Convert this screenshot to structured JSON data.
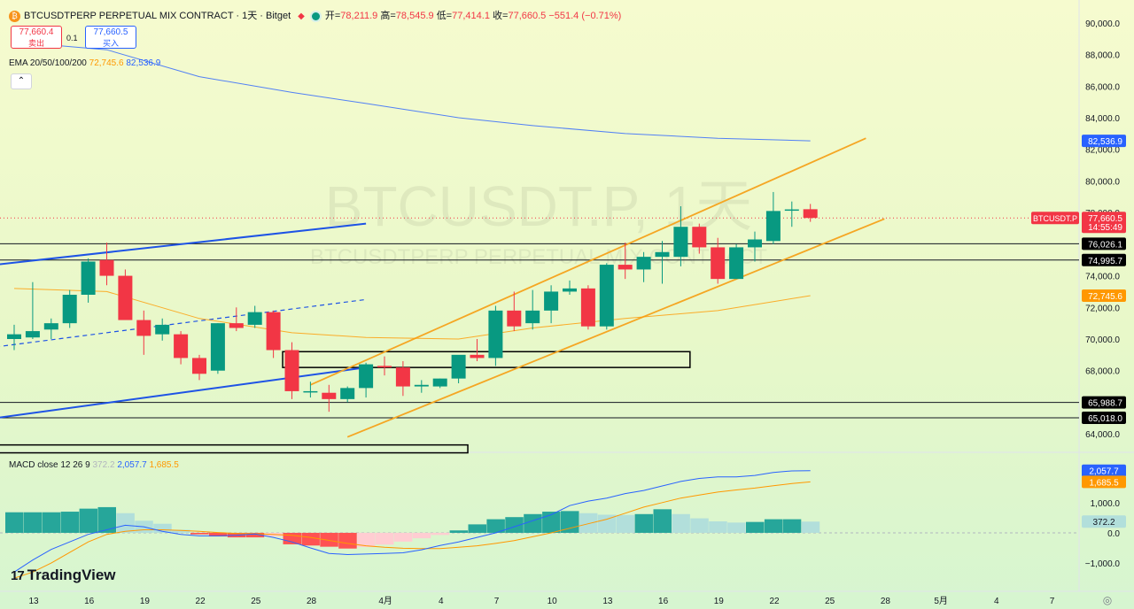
{
  "header": {
    "symbol_icon": "bitcoin-icon",
    "title": "BTCUSDTPERP PERPETUAL MIX CONTRACT · 1天 · Bitget",
    "open_label": "开=",
    "open": "78,211.9",
    "high_label": "高=",
    "high": "78,545.9",
    "low_label": "低=",
    "low": "77,414.1",
    "close_label": "收=",
    "close": "77,660.5",
    "change": "−551.4 (−0.71%)"
  },
  "trade": {
    "sell_price": "77,660.4",
    "sell_label": "卖出",
    "qty": "0.1",
    "buy_price": "77,660.5",
    "buy_label": "买入"
  },
  "ema_legend": {
    "label": "EMA 20/50/100/200",
    "v1": "72,745.6",
    "v2": "82,536.9"
  },
  "collapse_icon": "chevron-up-icon",
  "watermark": {
    "big": "BTCUSDT.P, 1天",
    "small": "BTCUSDTPERP PERPETUAL MIX CONTRACT"
  },
  "macd_legend": {
    "label": "MACD close 12 26 9",
    "hist": "372.2",
    "macd": "2,057.7",
    "signal": "1,685.5"
  },
  "price_axis": [
    "90,000.0",
    "88,000.0",
    "86,000.0",
    "84,000.0",
    "82,000.0",
    "80,000.0",
    "78,000.0",
    "76,000.0",
    "74,000.0",
    "72,000.0",
    "70,000.0",
    "68,000.0",
    "66,000.0",
    "64,000.0"
  ],
  "price_tags": [
    {
      "text": "82,536.9",
      "price": 82536.9,
      "bg": "#2962ff",
      "fg": "#ffffff"
    },
    {
      "text": "77,660.5",
      "price": 77660.5,
      "bg": "#f23645",
      "fg": "#ffffff",
      "sub": "14:55:49"
    },
    {
      "text": "76,026.1",
      "price": 76026.1,
      "bg": "#000000",
      "fg": "#ffffff"
    },
    {
      "text": "74,995.7",
      "price": 74995.7,
      "bg": "#000000",
      "fg": "#ffffff"
    },
    {
      "text": "72,745.6",
      "price": 72745.6,
      "bg": "#ff9800",
      "fg": "#ffffff"
    },
    {
      "text": "65,988.7",
      "price": 65988.7,
      "bg": "#000000",
      "fg": "#ffffff"
    },
    {
      "text": "65,018.0",
      "price": 65018.0,
      "bg": "#000000",
      "fg": "#ffffff"
    }
  ],
  "symbol_tag": "BTCUSDT.P",
  "macd_axis": [
    "1,000.0",
    "0.0",
    "−1,000.0"
  ],
  "macd_tags": [
    {
      "text": "2,057.7",
      "value": 2057.7,
      "bg": "#2962ff",
      "fg": "#ffffff"
    },
    {
      "text": "1,685.5",
      "value": 1685.5,
      "bg": "#ff9800",
      "fg": "#ffffff"
    },
    {
      "text": "372.2",
      "value": 372.2,
      "bg": "#b2dfdb",
      "fg": "#131722"
    }
  ],
  "time_axis": [
    {
      "label": "13",
      "bar": 0
    },
    {
      "label": "16",
      "bar": 3
    },
    {
      "label": "19",
      "bar": 6
    },
    {
      "label": "22",
      "bar": 9
    },
    {
      "label": "25",
      "bar": 12
    },
    {
      "label": "28",
      "bar": 15
    },
    {
      "label": "4月",
      "bar": 19
    },
    {
      "label": "4",
      "bar": 22
    },
    {
      "label": "7",
      "bar": 25
    },
    {
      "label": "10",
      "bar": 28
    },
    {
      "label": "13",
      "bar": 31
    },
    {
      "label": "16",
      "bar": 34
    },
    {
      "label": "19",
      "bar": 37
    },
    {
      "label": "22",
      "bar": 40
    },
    {
      "label": "25",
      "bar": 43
    },
    {
      "label": "28",
      "bar": 46
    },
    {
      "label": "5月",
      "bar": 49
    },
    {
      "label": "4",
      "bar": 52
    },
    {
      "label": "7",
      "bar": 55
    }
  ],
  "settings_icon": "gear-icon",
  "branding": {
    "text": "TradingView",
    "icon": "tradingview-logo-icon"
  },
  "colors": {
    "up": "#089981",
    "down": "#f23645",
    "ema_short": "#ff9800",
    "ema_long": "#2962ff",
    "channel": "#f5a623",
    "trendline": "#1e53e5",
    "hist_up_strong": "#26a69a",
    "hist_up_weak": "#b2dfdb",
    "hist_down_strong": "#ff5252",
    "hist_down_weak": "#ffcdd2"
  },
  "chart_data": {
    "type": "candlestick",
    "symbol": "BTCUSDT.P",
    "interval": "1天",
    "ylim": [
      63000,
      91000
    ],
    "candles": [
      {
        "o": 70000,
        "h": 70900,
        "l": 69300,
        "c": 70300
      },
      {
        "o": 70100,
        "h": 73600,
        "l": 70000,
        "c": 70500
      },
      {
        "o": 70600,
        "h": 71300,
        "l": 70000,
        "c": 71000
      },
      {
        "o": 71000,
        "h": 73100,
        "l": 70700,
        "c": 72800
      },
      {
        "o": 72800,
        "h": 75100,
        "l": 72300,
        "c": 74900
      },
      {
        "o": 75000,
        "h": 76100,
        "l": 73400,
        "c": 74000
      },
      {
        "o": 74000,
        "h": 74400,
        "l": 71300,
        "c": 71200
      },
      {
        "o": 71200,
        "h": 71800,
        "l": 69000,
        "c": 70200
      },
      {
        "o": 70300,
        "h": 71300,
        "l": 69900,
        "c": 70900
      },
      {
        "o": 70300,
        "h": 70500,
        "l": 68400,
        "c": 68800
      },
      {
        "o": 68800,
        "h": 69000,
        "l": 67400,
        "c": 67800
      },
      {
        "o": 68000,
        "h": 71000,
        "l": 67800,
        "c": 71000
      },
      {
        "o": 71000,
        "h": 72000,
        "l": 70500,
        "c": 70700
      },
      {
        "o": 70900,
        "h": 72100,
        "l": 70700,
        "c": 71700
      },
      {
        "o": 71700,
        "h": 71800,
        "l": 68800,
        "c": 69300
      },
      {
        "o": 69300,
        "h": 69800,
        "l": 66200,
        "c": 66700
      },
      {
        "o": 66700,
        "h": 67300,
        "l": 66300,
        "c": 66700
      },
      {
        "o": 66600,
        "h": 67100,
        "l": 65400,
        "c": 66200
      },
      {
        "o": 66200,
        "h": 67000,
        "l": 66000,
        "c": 66900
      },
      {
        "o": 66900,
        "h": 68500,
        "l": 66300,
        "c": 68400
      },
      {
        "o": 68300,
        "h": 68900,
        "l": 67700,
        "c": 68200
      },
      {
        "o": 68200,
        "h": 68600,
        "l": 66400,
        "c": 67000
      },
      {
        "o": 67000,
        "h": 67400,
        "l": 66600,
        "c": 67100
      },
      {
        "o": 67000,
        "h": 67500,
        "l": 66900,
        "c": 67500
      },
      {
        "o": 67500,
        "h": 68900,
        "l": 67200,
        "c": 69000
      },
      {
        "o": 69000,
        "h": 70000,
        "l": 68600,
        "c": 68800
      },
      {
        "o": 68800,
        "h": 72100,
        "l": 68300,
        "c": 71800
      },
      {
        "o": 71800,
        "h": 73000,
        "l": 70500,
        "c": 70800
      },
      {
        "o": 71000,
        "h": 73100,
        "l": 70600,
        "c": 71800
      },
      {
        "o": 71800,
        "h": 73400,
        "l": 71000,
        "c": 73000
      },
      {
        "o": 73000,
        "h": 73700,
        "l": 72800,
        "c": 73200
      },
      {
        "o": 73200,
        "h": 73400,
        "l": 70600,
        "c": 70800
      },
      {
        "o": 70800,
        "h": 74800,
        "l": 70600,
        "c": 74700
      },
      {
        "o": 74700,
        "h": 76100,
        "l": 73800,
        "c": 74400
      },
      {
        "o": 74400,
        "h": 75500,
        "l": 73600,
        "c": 75200
      },
      {
        "o": 75200,
        "h": 76200,
        "l": 73500,
        "c": 75500
      },
      {
        "o": 75200,
        "h": 78400,
        "l": 74600,
        "c": 77100
      },
      {
        "o": 77100,
        "h": 77300,
        "l": 75400,
        "c": 75800
      },
      {
        "o": 75800,
        "h": 76400,
        "l": 73500,
        "c": 73800
      },
      {
        "o": 73800,
        "h": 76000,
        "l": 73800,
        "c": 75800
      },
      {
        "o": 75800,
        "h": 76800,
        "l": 74900,
        "c": 76300
      },
      {
        "o": 76200,
        "h": 79300,
        "l": 76000,
        "c": 78100
      },
      {
        "o": 78200,
        "h": 78700,
        "l": 77100,
        "c": 78200
      },
      {
        "o": 78211.9,
        "h": 78545.9,
        "l": 77414.1,
        "c": 77660.5
      }
    ],
    "ema_short": [
      [
        0,
        73200
      ],
      [
        5,
        73000
      ],
      [
        10,
        71300
      ],
      [
        15,
        70400
      ],
      [
        19,
        70100
      ],
      [
        24,
        70000
      ],
      [
        28,
        70700
      ],
      [
        33,
        71300
      ],
      [
        38,
        71800
      ],
      [
        43,
        72745.6
      ]
    ],
    "ema_long": [
      [
        0,
        88800
      ],
      [
        5,
        88300
      ],
      [
        10,
        86600
      ],
      [
        15,
        85600
      ],
      [
        19,
        84900
      ],
      [
        24,
        84000
      ],
      [
        28,
        83500
      ],
      [
        33,
        83000
      ],
      [
        38,
        82700
      ],
      [
        43,
        82536.9
      ]
    ],
    "trendlines": [
      {
        "kind": "solid",
        "color": "trendline",
        "p1": [
          -1,
          74700
        ],
        "p2": [
          19,
          77300
        ]
      },
      {
        "kind": "dashed",
        "color": "trendline",
        "p1": [
          -1,
          69500
        ],
        "p2": [
          19,
          72500
        ]
      },
      {
        "kind": "solid",
        "color": "trendline",
        "p1": [
          -1,
          65000
        ],
        "p2": [
          19,
          68200
        ]
      },
      {
        "kind": "solid",
        "color": "channel",
        "p1": [
          16,
          67100
        ],
        "p2": [
          46,
          82700
        ]
      },
      {
        "kind": "solid",
        "color": "channel",
        "p1": [
          18,
          63800
        ],
        "p2": [
          47,
          77600
        ]
      }
    ],
    "hlines": [
      76026.1,
      74995.7,
      65988.7,
      65018.0
    ],
    "rects": [
      {
        "x1": 14.5,
        "x2": 36.5,
        "y_top": 69200,
        "y_bot": 68200
      },
      {
        "x1": -1,
        "x2": 24.5,
        "y_top": 63300,
        "y_bot": 62800
      }
    ],
    "macd": {
      "ylim": [
        -1700,
        2400
      ],
      "histogram": [
        680,
        680,
        680,
        700,
        800,
        850,
        650,
        400,
        300,
        100,
        -50,
        -120,
        -150,
        -150,
        -120,
        -380,
        -420,
        -460,
        -520,
        -470,
        -390,
        -290,
        -180,
        -70,
        80,
        280,
        450,
        520,
        620,
        700,
        720,
        650,
        600,
        590,
        620,
        780,
        620,
        480,
        380,
        340,
        360,
        450,
        450,
        372.2
      ],
      "macd_line": [
        -1300,
        -900,
        -550,
        -300,
        -50,
        100,
        250,
        200,
        50,
        -50,
        -100,
        -100,
        -80,
        -40,
        -150,
        -300,
        -500,
        -680,
        -720,
        -700,
        -680,
        -660,
        -560,
        -420,
        -300,
        -150,
        0,
        200,
        400,
        600,
        900,
        1050,
        1150,
        1300,
        1400,
        1550,
        1700,
        1800,
        1850,
        1850,
        1900,
        2000,
        2050,
        2057.7
      ],
      "signal_line": [
        -1500,
        -1300,
        -1000,
        -650,
        -300,
        -50,
        50,
        100,
        100,
        80,
        50,
        10,
        -20,
        -30,
        -50,
        -80,
        -150,
        -250,
        -350,
        -430,
        -480,
        -510,
        -520,
        -520,
        -480,
        -430,
        -350,
        -260,
        -130,
        0,
        150,
        300,
        450,
        650,
        850,
        1000,
        1150,
        1250,
        1350,
        1420,
        1480,
        1560,
        1630,
        1685.5
      ]
    }
  }
}
